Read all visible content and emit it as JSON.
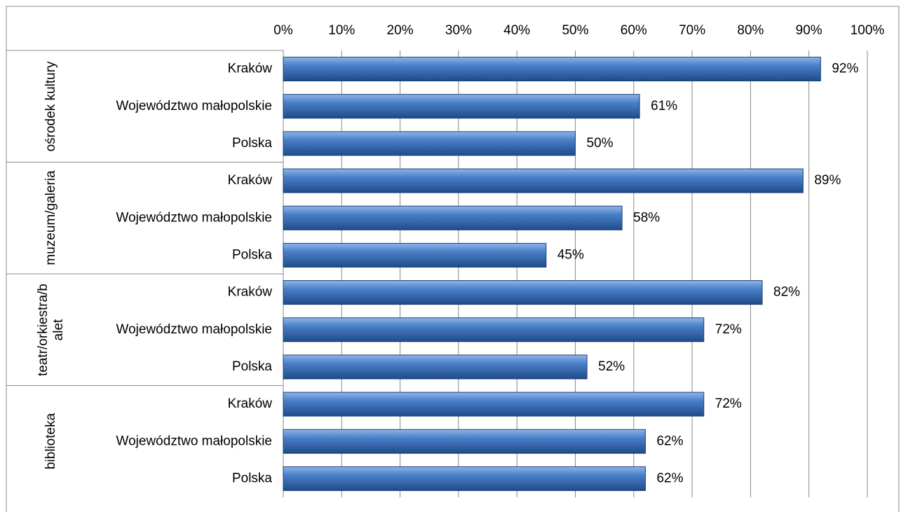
{
  "chart_data": {
    "type": "bar",
    "orientation": "horizontal",
    "groups": [
      "ośrodek kultury",
      "muzeum/galeria",
      "teatr/orkiestra/balet",
      "biblioteka"
    ],
    "categories": [
      "Kraków",
      "Województwo małopolskie",
      "Polska",
      "Kraków",
      "Województwo małopolskie",
      "Polska",
      "Kraków",
      "Województwo małopolskie",
      "Polska",
      "Kraków",
      "Województwo małopolskie",
      "Polska"
    ],
    "values": [
      92,
      61,
      50,
      89,
      58,
      45,
      82,
      72,
      52,
      72,
      62,
      62
    ],
    "value_labels": [
      "92%",
      "61%",
      "50%",
      "89%",
      "58%",
      "45%",
      "82%",
      "72%",
      "52%",
      "72%",
      "62%",
      "62%"
    ],
    "color": "#3a6fb8",
    "xlim": [
      0,
      100
    ],
    "xticks": [
      {
        "value": 0,
        "label": "0%"
      },
      {
        "value": 10,
        "label": "10%"
      },
      {
        "value": 20,
        "label": "20%"
      },
      {
        "value": 30,
        "label": "30%"
      },
      {
        "value": 40,
        "label": "40%"
      },
      {
        "value": 50,
        "label": "50%"
      },
      {
        "value": 60,
        "label": "60%"
      },
      {
        "value": 70,
        "label": "70%"
      },
      {
        "value": 80,
        "label": "80%"
      },
      {
        "value": 90,
        "label": "90%"
      },
      {
        "value": 100,
        "label": "100%"
      }
    ],
    "grid": true
  }
}
